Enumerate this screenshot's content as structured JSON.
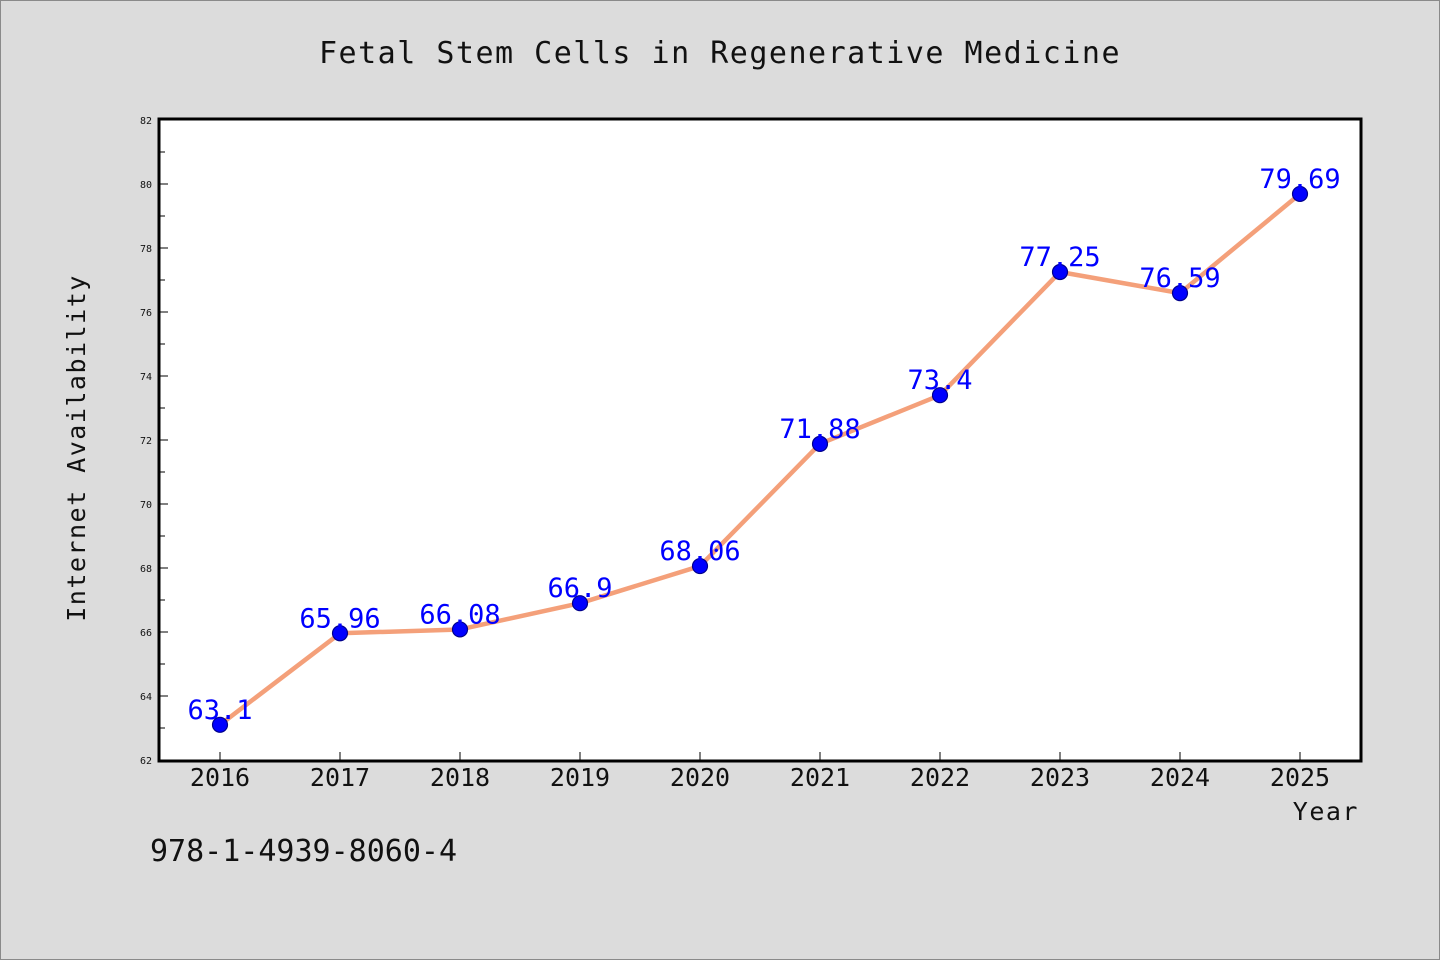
{
  "chart_data": {
    "type": "line",
    "title": "Fetal Stem Cells in Regenerative Medicine",
    "xlabel": "Year",
    "ylabel": "Internet Availability",
    "categories": [
      "2016",
      "2017",
      "2018",
      "2019",
      "2020",
      "2021",
      "2022",
      "2023",
      "2024",
      "2025"
    ],
    "series": [
      {
        "values": [
          63.1,
          65.96,
          66.08,
          66.9,
          68.06,
          71.88,
          73.4,
          77.25,
          76.59,
          79.69
        ],
        "data_labels": [
          "63.1",
          "65.96",
          "66.08",
          "66.9",
          "68.06",
          "71.88",
          "73.4",
          "77.25",
          "76.59",
          "79.69"
        ]
      }
    ],
    "ylim": [
      62,
      82
    ],
    "yticks": [
      "62",
      "64",
      "66",
      "68",
      "70",
      "72",
      "74",
      "76",
      "78",
      "80",
      "82"
    ],
    "grid": false,
    "colors": {
      "line": "#f4a07a",
      "marker": "#0000ff",
      "marker_edge": "#00008b",
      "data_label": "#0000ff"
    }
  },
  "footer_code": "978-1-4939-8060-4"
}
